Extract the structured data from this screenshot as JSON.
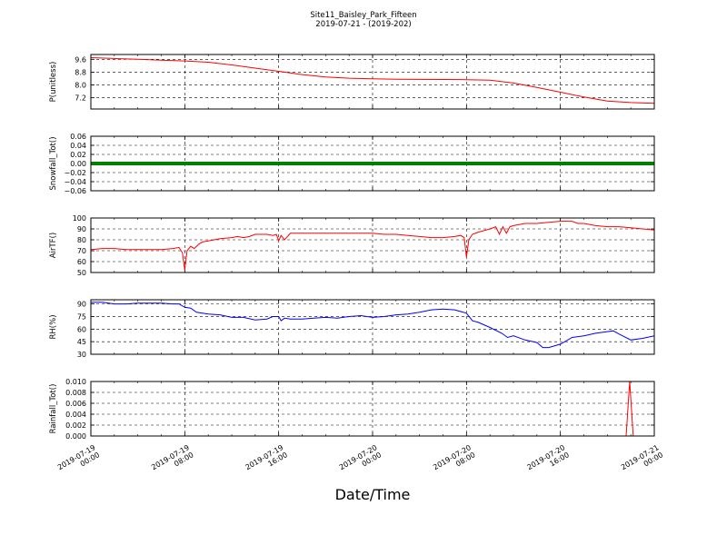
{
  "figure": {
    "title": "Site11_Baisley_Park_Fifteen",
    "subtitle": "2019-07-21 - (2019-202)",
    "xlabel": "Date/Time"
  },
  "chart_data": [
    {
      "type": "line",
      "ylabel": "P(unitless)",
      "ylim": [
        6.5,
        9.9
      ],
      "yticks": [
        "9.6",
        "8.8",
        "8.0",
        "7.2"
      ],
      "ytick_values": [
        9.6,
        8.8,
        8.0,
        7.2
      ],
      "grid": true,
      "series": [
        {
          "color": "#ff0000",
          "x": [
            0,
            2,
            4,
            6,
            8,
            10,
            12,
            14,
            16,
            18,
            20,
            22,
            24,
            26,
            28,
            30,
            32,
            34,
            36,
            38,
            40,
            42,
            44,
            46,
            48
          ],
          "y": [
            9.7,
            9.65,
            9.6,
            9.55,
            9.5,
            9.42,
            9.25,
            9.05,
            8.85,
            8.65,
            8.5,
            8.42,
            8.38,
            8.36,
            8.35,
            8.34,
            8.33,
            8.3,
            8.12,
            7.85,
            7.55,
            7.25,
            7.0,
            6.9,
            6.85
          ]
        }
      ]
    },
    {
      "type": "line",
      "ylabel": "Snowfall_Tot()",
      "ylim": [
        -0.06,
        0.06
      ],
      "yticks": [
        "0.06",
        "0.04",
        "0.02",
        "0.00",
        "−0.02",
        "−0.04",
        "−0.06"
      ],
      "ytick_values": [
        0.06,
        0.04,
        0.02,
        0.0,
        -0.02,
        -0.04,
        -0.06
      ],
      "grid": true,
      "series": [
        {
          "color": "#008000",
          "x": [
            0,
            48
          ],
          "y": [
            0.0,
            0.0
          ]
        }
      ]
    },
    {
      "type": "line",
      "ylabel": "AirTF()",
      "ylim": [
        50,
        100
      ],
      "yticks": [
        "100",
        "90",
        "80",
        "70",
        "60",
        "50"
      ],
      "ytick_values": [
        100,
        90,
        80,
        70,
        60,
        50
      ],
      "grid": true,
      "series": [
        {
          "color": "#ff0000",
          "x": [
            0,
            1,
            2,
            3,
            4,
            5,
            6,
            7,
            7.5,
            7.8,
            8.0,
            8.2,
            8.5,
            8.8,
            9.2,
            9.5,
            10,
            10.5,
            11,
            12,
            12.5,
            13,
            13.5,
            14,
            15,
            15.5,
            15.8,
            16.0,
            16.2,
            16.5,
            17,
            18,
            19,
            20,
            21,
            22,
            23,
            24,
            25,
            26,
            27,
            28,
            29,
            30,
            31,
            31.5,
            31.8,
            32.0,
            32.2,
            32.5,
            33,
            34,
            34.5,
            34.8,
            35.1,
            35.4,
            35.7,
            36,
            37,
            38,
            39,
            40,
            41,
            41.5,
            42,
            43,
            44,
            45,
            46,
            47,
            48
          ],
          "y": [
            71,
            72,
            72,
            71,
            71,
            71,
            71,
            72,
            73,
            68,
            52,
            70,
            74,
            72,
            76,
            78,
            79,
            80,
            81,
            82,
            83,
            82,
            83,
            85,
            85,
            84,
            85,
            79,
            84,
            80,
            86,
            86,
            86,
            86,
            86,
            86,
            86,
            86,
            85,
            85,
            84,
            83,
            82,
            82,
            83,
            84,
            82,
            64,
            80,
            85,
            87,
            90,
            92,
            85,
            92,
            86,
            92,
            93,
            95,
            95,
            96,
            97,
            97,
            95,
            95,
            93,
            92,
            92,
            91,
            90,
            89
          ]
        }
      ]
    },
    {
      "type": "line",
      "ylabel": "RH(%)",
      "ylim": [
        30,
        95
      ],
      "yticks": [
        "90",
        "75",
        "60",
        "45",
        "30"
      ],
      "ytick_values": [
        90,
        75,
        60,
        45,
        30
      ],
      "grid": true,
      "series": [
        {
          "color": "#0000ff",
          "x": [
            0,
            1,
            2,
            3,
            4,
            5,
            6,
            7,
            7.5,
            8,
            8.5,
            9,
            10,
            11,
            12,
            13,
            14,
            15,
            15.5,
            16,
            16.2,
            16.5,
            17,
            18,
            19,
            20,
            21,
            22,
            23,
            24,
            25,
            26,
            27,
            28,
            29,
            30,
            31,
            32,
            32.5,
            33,
            34,
            35,
            35.5,
            36,
            37,
            38,
            38.5,
            39,
            40,
            41,
            42,
            43,
            44,
            44.5,
            45,
            46,
            47,
            48
          ],
          "y": [
            92,
            92,
            90,
            90,
            91,
            91,
            91,
            90,
            90,
            86,
            85,
            80,
            78,
            77,
            74,
            74,
            71,
            72,
            75,
            75,
            70,
            73,
            72,
            72,
            73,
            74,
            73,
            75,
            76,
            74,
            75,
            77,
            78,
            80,
            83,
            84,
            83,
            79,
            70,
            68,
            62,
            55,
            50,
            52,
            47,
            44,
            38,
            38,
            42,
            50,
            52,
            55,
            57,
            58,
            54,
            47,
            49,
            52
          ]
        }
      ]
    },
    {
      "type": "line",
      "ylabel": "Rainfall_Tot()",
      "ylim": [
        0.0,
        0.01
      ],
      "yticks": [
        "0.010",
        "0.008",
        "0.006",
        "0.004",
        "0.002",
        "0.000"
      ],
      "ytick_values": [
        0.01,
        0.008,
        0.006,
        0.004,
        0.002,
        0.0
      ],
      "grid": true,
      "series": [
        {
          "color": "#ff0000",
          "x": [
            0,
            45.6,
            45.9,
            46.2,
            48
          ],
          "y": [
            0.0,
            0.0,
            0.01,
            0.0,
            0.0
          ]
        }
      ]
    }
  ],
  "x_axis": {
    "range_hours": [
      0,
      48
    ],
    "ticks": [
      {
        "value": 0,
        "line1": "2019-07-19",
        "line2": "00:00"
      },
      {
        "value": 8,
        "line1": "2019-07-19",
        "line2": "08:00"
      },
      {
        "value": 16,
        "line1": "2019-07-19",
        "line2": "16:00"
      },
      {
        "value": 24,
        "line1": "2019-07-20",
        "line2": "00:00"
      },
      {
        "value": 32,
        "line1": "2019-07-20",
        "line2": "08:00"
      },
      {
        "value": 40,
        "line1": "2019-07-20",
        "line2": "16:00"
      },
      {
        "value": 48,
        "line1": "2019-07-21",
        "line2": "00:00"
      }
    ]
  }
}
